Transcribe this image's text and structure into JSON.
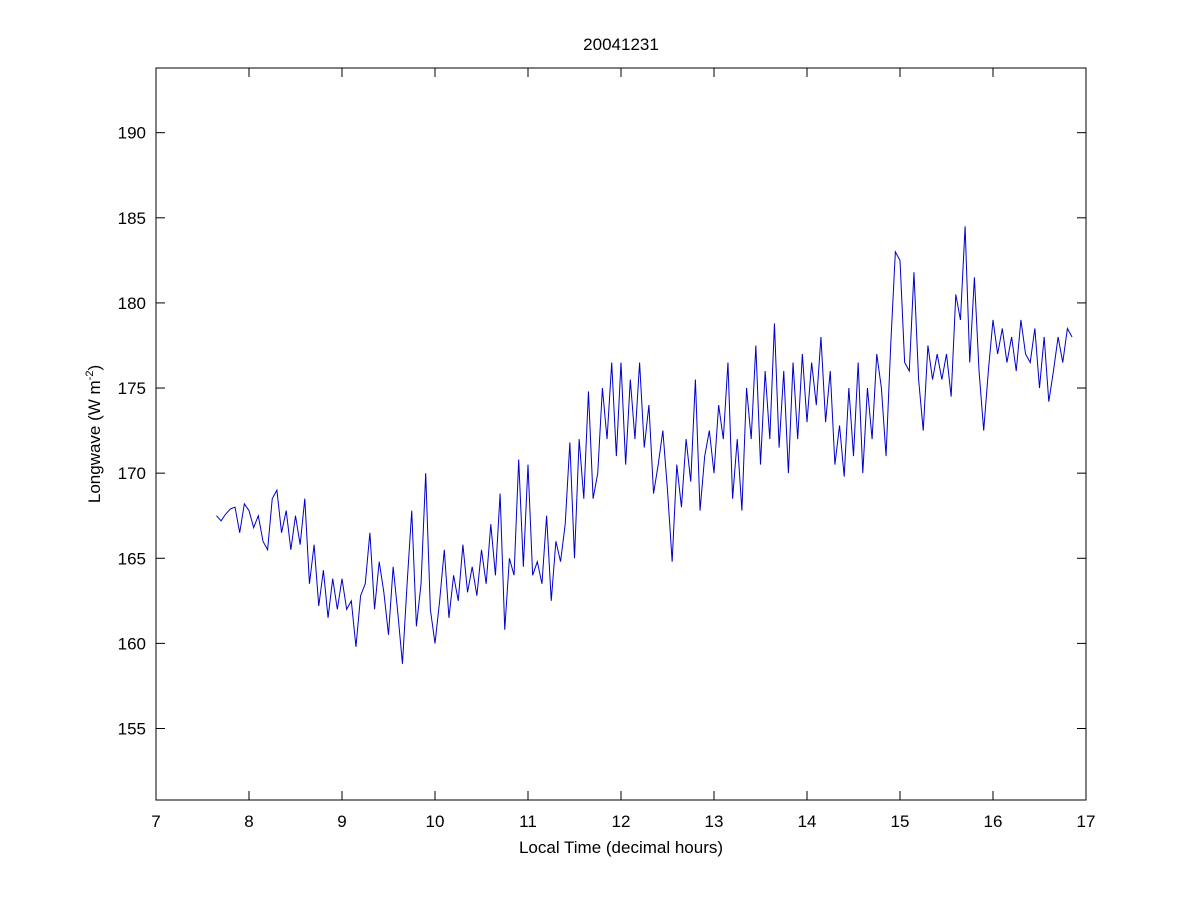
{
  "chart_data": {
    "type": "line",
    "title": "20041231",
    "xlabel": "Local Time (decimal hours)",
    "ylabel": {
      "text": "Longwave (W m",
      "sup": "-2",
      "end": ")"
    },
    "xlim": [
      7,
      17
    ],
    "xticks": [
      7,
      8,
      9,
      10,
      11,
      12,
      13,
      14,
      15,
      16,
      17
    ],
    "ylim": [
      150.8,
      193.8
    ],
    "yticks": [
      155,
      160,
      165,
      170,
      175,
      180,
      185,
      190
    ],
    "grid": false,
    "x": [
      7.65,
      7.7,
      7.75,
      7.8,
      7.85,
      7.9,
      7.95,
      8.0,
      8.05,
      8.1,
      8.15,
      8.2,
      8.25,
      8.3,
      8.35,
      8.4,
      8.45,
      8.5,
      8.55,
      8.6,
      8.65,
      8.7,
      8.75,
      8.8,
      8.85,
      8.9,
      8.95,
      9.0,
      9.05,
      9.1,
      9.15,
      9.2,
      9.25,
      9.3,
      9.35,
      9.4,
      9.45,
      9.5,
      9.55,
      9.6,
      9.65,
      9.7,
      9.75,
      9.8,
      9.85,
      9.9,
      9.95,
      10.0,
      10.05,
      10.1,
      10.15,
      10.2,
      10.25,
      10.3,
      10.35,
      10.4,
      10.45,
      10.5,
      10.55,
      10.6,
      10.65,
      10.7,
      10.75,
      10.8,
      10.85,
      10.9,
      10.95,
      11.0,
      11.05,
      11.1,
      11.15,
      11.2,
      11.25,
      11.3,
      11.35,
      11.4,
      11.45,
      11.5,
      11.55,
      11.6,
      11.65,
      11.7,
      11.75,
      11.8,
      11.85,
      11.9,
      11.95,
      12.0,
      12.05,
      12.1,
      12.15,
      12.2,
      12.25,
      12.3,
      12.35,
      12.4,
      12.45,
      12.5,
      12.55,
      12.6,
      12.65,
      12.7,
      12.75,
      12.8,
      12.85,
      12.9,
      12.95,
      13.0,
      13.05,
      13.1,
      13.15,
      13.2,
      13.25,
      13.3,
      13.35,
      13.4,
      13.45,
      13.5,
      13.55,
      13.6,
      13.65,
      13.7,
      13.75,
      13.8,
      13.85,
      13.9,
      13.95,
      14.0,
      14.05,
      14.1,
      14.15,
      14.2,
      14.25,
      14.3,
      14.35,
      14.4,
      14.45,
      14.5,
      14.55,
      14.6,
      14.65,
      14.7,
      14.75,
      14.8,
      14.85,
      14.9,
      14.95,
      15.0,
      15.05,
      15.1,
      15.15,
      15.2,
      15.25,
      15.3,
      15.35,
      15.4,
      15.45,
      15.5,
      15.55,
      15.6,
      15.65,
      15.7,
      15.75,
      15.8,
      15.85,
      15.9,
      15.95,
      16.0,
      16.05,
      16.1,
      16.15,
      16.2,
      16.25,
      16.3,
      16.35,
      16.4,
      16.45,
      16.5,
      16.55,
      16.6,
      16.65,
      16.7,
      16.75,
      16.8,
      16.85
    ],
    "series": [
      {
        "color": "#0000cc",
        "values": [
          167.5,
          167.2,
          167.6,
          167.9,
          168.0,
          166.5,
          168.2,
          167.8,
          166.8,
          167.5,
          166.0,
          165.5,
          168.5,
          169.0,
          166.5,
          167.8,
          165.5,
          167.5,
          165.8,
          168.5,
          163.5,
          165.8,
          162.2,
          164.3,
          161.5,
          163.8,
          162.0,
          163.8,
          162.0,
          162.5,
          159.8,
          162.8,
          163.5,
          166.5,
          162.0,
          164.8,
          163.0,
          160.5,
          164.5,
          161.8,
          158.8,
          163.5,
          167.8,
          161.0,
          163.5,
          170.0,
          162.0,
          160.0,
          162.5,
          165.5,
          161.5,
          164.0,
          162.5,
          165.8,
          163.0,
          164.5,
          162.8,
          165.5,
          163.5,
          167.0,
          164.0,
          168.8,
          160.8,
          165.0,
          164.0,
          170.8,
          164.5,
          170.5,
          164.0,
          164.8,
          163.5,
          167.5,
          162.5,
          166.0,
          164.8,
          167.0,
          171.8,
          165.0,
          172.0,
          168.5,
          174.8,
          168.5,
          170.0,
          175.0,
          172.0,
          176.5,
          171.0,
          176.5,
          170.5,
          175.5,
          172.0,
          176.5,
          171.5,
          174.0,
          168.8,
          170.5,
          172.5,
          169.0,
          164.8,
          170.5,
          168.0,
          172.0,
          169.5,
          175.5,
          167.8,
          171.0,
          172.5,
          170.0,
          174.0,
          172.0,
          176.5,
          168.5,
          172.0,
          167.8,
          175.0,
          172.0,
          177.5,
          170.5,
          176.0,
          172.0,
          178.8,
          171.5,
          176.0,
          170.0,
          176.5,
          172.0,
          177.0,
          173.0,
          176.5,
          174.0,
          178.0,
          173.0,
          176.0,
          170.5,
          172.8,
          169.8,
          175.0,
          171.0,
          176.5,
          170.0,
          175.0,
          172.0,
          177.0,
          175.0,
          171.0,
          177.5,
          183.0,
          182.5,
          176.5,
          176.0,
          181.8,
          175.5,
          172.5,
          177.5,
          175.5,
          177.0,
          175.5,
          177.0,
          174.5,
          180.5,
          179.0,
          184.5,
          176.5,
          181.5,
          176.0,
          172.5,
          176.0,
          179.0,
          177.0,
          178.5,
          176.5,
          178.0,
          176.0,
          179.0,
          177.0,
          176.5,
          178.5,
          175.0,
          178.0,
          174.2,
          176.0,
          178.0,
          176.5,
          178.5,
          178.0
        ]
      }
    ]
  }
}
